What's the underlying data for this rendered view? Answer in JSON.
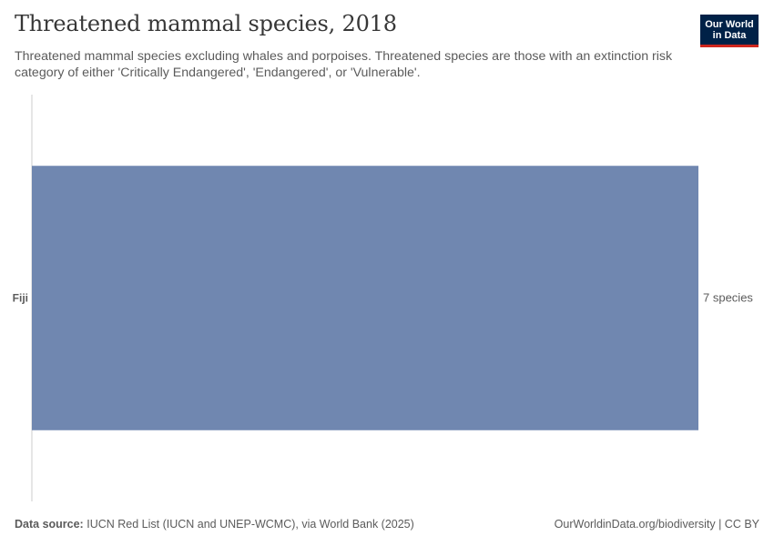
{
  "header": {
    "title": "Threatened mammal species, 2018",
    "subtitle": "Threatened mammal species excluding whales and porpoises. Threatened species are those with an extinction risk category of either 'Critically Endangered', 'Endangered', or 'Vulnerable'."
  },
  "logo": {
    "line1": "Our World",
    "line2": "in Data"
  },
  "footer": {
    "source_label": "Data source:",
    "source_text": "IUCN Red List (IUCN and UNEP-WCMC), via World Bank (2025)",
    "site": "OurWorldinData.org/biodiversity",
    "separator": " | ",
    "license": "CC BY"
  },
  "colors": {
    "bar": "#7087b0",
    "axis": "#cccccc",
    "logo_bg": "#002147",
    "logo_accent": "#ce261e"
  },
  "chart_data": {
    "type": "bar",
    "orientation": "horizontal",
    "title": "Threatened mammal species, 2018",
    "categories": [
      "Fiji"
    ],
    "values": [
      7
    ],
    "value_labels": [
      "7 species"
    ],
    "unit": "species",
    "xlim": [
      0,
      7
    ],
    "xlabel": "",
    "ylabel": "",
    "grid": false
  }
}
